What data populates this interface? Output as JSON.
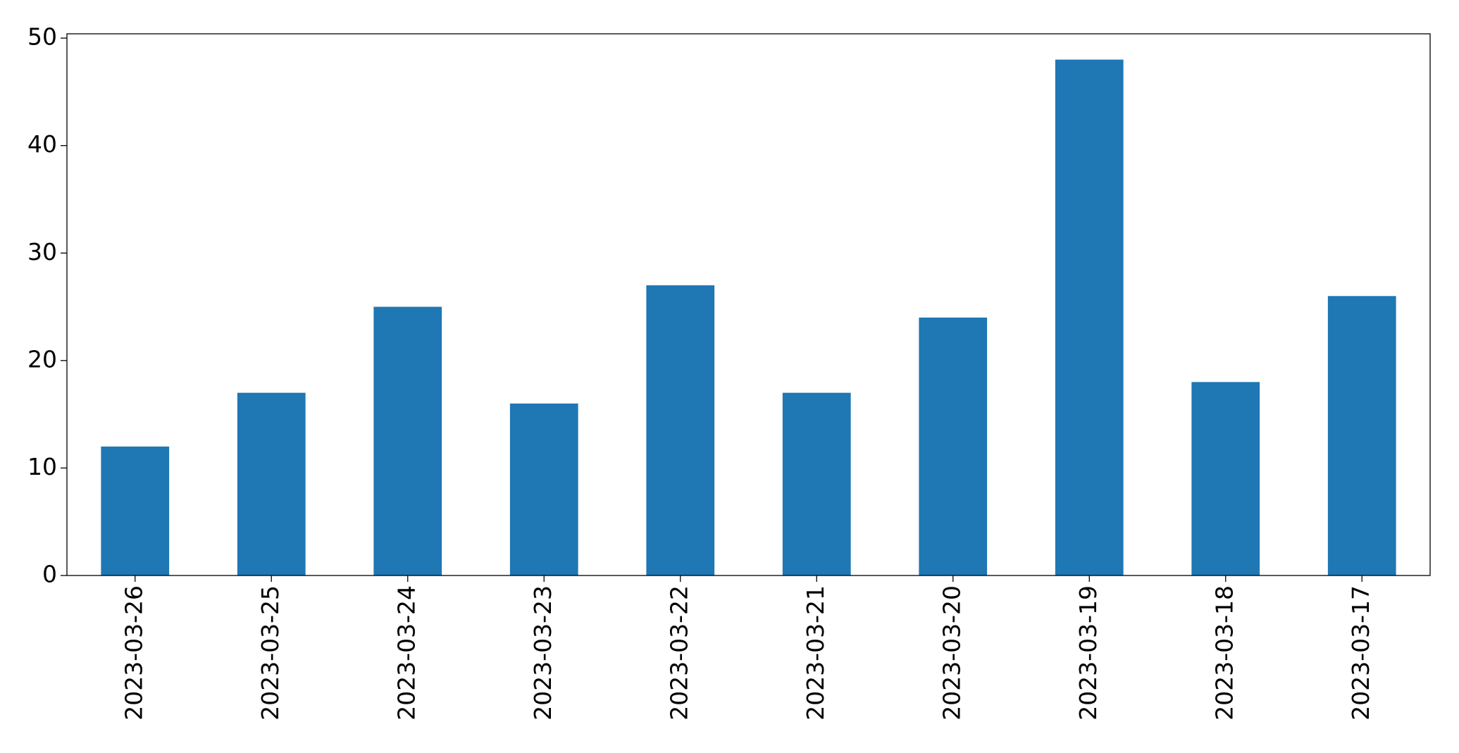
{
  "chart_data": {
    "type": "bar",
    "categories": [
      "2023-03-26",
      "2023-03-25",
      "2023-03-24",
      "2023-03-23",
      "2023-03-22",
      "2023-03-21",
      "2023-03-20",
      "2023-03-19",
      "2023-03-18",
      "2023-03-17"
    ],
    "values": [
      12,
      17,
      25,
      16,
      27,
      17,
      24,
      48,
      18,
      26
    ],
    "color": "#1f77b4",
    "ylim": [
      0,
      50.4
    ],
    "yticks": [
      0,
      10,
      20,
      30,
      40,
      50
    ],
    "grid": false
  }
}
